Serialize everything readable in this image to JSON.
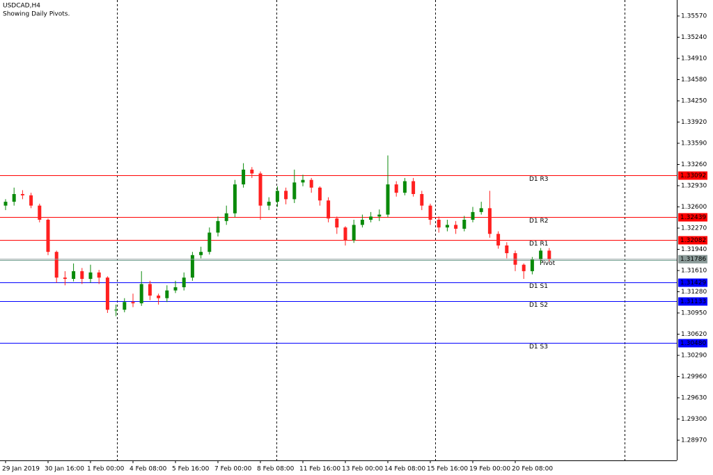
{
  "chart_data": {
    "type": "candlestick",
    "title": "USDCAD,H4",
    "subtitle": "Showing Daily Pivots.",
    "up_color": "#0a8a0a",
    "down_color": "#ff2020",
    "ylim": [
      1.28656,
      1.35819
    ],
    "yticks": [
      {
        "value": 1.3557,
        "label": "1.35570"
      },
      {
        "value": 1.3524,
        "label": "1.35240"
      },
      {
        "value": 1.3491,
        "label": "1.34910"
      },
      {
        "value": 1.3458,
        "label": "1.34580"
      },
      {
        "value": 1.3425,
        "label": "1.34250"
      },
      {
        "value": 1.3392,
        "label": "1.33920"
      },
      {
        "value": 1.3359,
        "label": "1.33590"
      },
      {
        "value": 1.3326,
        "label": "1.33260"
      },
      {
        "value": 1.3293,
        "label": "1.32930"
      },
      {
        "value": 1.326,
        "label": "1.32600"
      },
      {
        "value": 1.3227,
        "label": "1.32270"
      },
      {
        "value": 1.3194,
        "label": "1.31940"
      },
      {
        "value": 1.3161,
        "label": "1.31610"
      },
      {
        "value": 1.3128,
        "label": "1.31280"
      },
      {
        "value": 1.3095,
        "label": "1.30950"
      },
      {
        "value": 1.3062,
        "label": "1.30620"
      },
      {
        "value": 1.3029,
        "label": "1.30290"
      },
      {
        "value": 1.2996,
        "label": "1.29960"
      },
      {
        "value": 1.2963,
        "label": "1.29630"
      },
      {
        "value": 1.293,
        "label": "1.29300"
      },
      {
        "value": 1.2897,
        "label": "1.28970"
      }
    ],
    "categories": [
      "29 Jan 2019",
      null,
      null,
      null,
      null,
      "30 Jan 16:00",
      null,
      null,
      null,
      null,
      "1 Feb 00:00",
      null,
      null,
      null,
      null,
      "4 Feb 08:00",
      null,
      null,
      null,
      null,
      "5 Feb 16:00",
      null,
      null,
      null,
      null,
      "7 Feb 00:00",
      null,
      null,
      null,
      null,
      "8 Feb 08:00",
      null,
      null,
      null,
      null,
      "11 Feb 16:00",
      null,
      null,
      null,
      null,
      "13 Feb 00:00",
      null,
      null,
      null,
      null,
      "14 Feb 08:00",
      null,
      null,
      null,
      null,
      "15 Feb 16:00",
      null,
      null,
      null,
      null,
      "19 Feb 00:00",
      null,
      null,
      null,
      null,
      "20 Feb 08:00",
      null,
      null,
      null,
      null
    ],
    "open": [
      1.3262,
      1.3268,
      1.328,
      1.3278,
      1.3262,
      1.324,
      1.319,
      1.315,
      1.3148,
      1.316,
      1.3148,
      1.3158,
      1.315,
      1.31,
      1.31,
      1.3112,
      1.311,
      1.314,
      1.3122,
      1.3118,
      1.313,
      1.3135,
      1.315,
      1.3185,
      1.319,
      1.322,
      1.3238,
      1.325,
      1.3295,
      1.3318,
      1.3312,
      1.3262,
      1.3268,
      1.3285,
      1.3272,
      1.3298,
      1.3302,
      1.329,
      1.327,
      1.3242,
      1.3228,
      1.3208,
      1.3232,
      1.324,
      1.3245,
      1.3248,
      1.3295,
      1.3282,
      1.33,
      1.328,
      1.3262,
      1.324,
      1.3228,
      1.3232,
      1.3226,
      1.324,
      1.3252,
      1.3258,
      1.3218,
      1.32,
      1.3188,
      1.317,
      1.316,
      1.3178,
      1.3192
    ],
    "high": [
      1.3272,
      1.329,
      1.3286,
      1.3282,
      1.3265,
      1.3242,
      1.3192,
      1.316,
      1.3172,
      1.3165,
      1.317,
      1.3162,
      1.3152,
      1.3108,
      1.3118,
      1.3125,
      1.316,
      1.3145,
      1.3125,
      1.3138,
      1.3145,
      1.3158,
      1.319,
      1.3198,
      1.3228,
      1.3245,
      1.3262,
      1.3302,
      1.3328,
      1.3322,
      1.3315,
      1.3275,
      1.3292,
      1.329,
      1.3318,
      1.331,
      1.3305,
      1.3292,
      1.3275,
      1.3245,
      1.323,
      1.324,
      1.3248,
      1.3252,
      1.3256,
      1.334,
      1.33,
      1.3305,
      1.3305,
      1.3285,
      1.3265,
      1.3245,
      1.324,
      1.3238,
      1.3246,
      1.326,
      1.3268,
      1.3285,
      1.3222,
      1.3205,
      1.3192,
      1.3172,
      1.3182,
      1.3196,
      1.3196
    ],
    "low": [
      1.3255,
      1.3262,
      1.3272,
      1.3258,
      1.3236,
      1.3185,
      1.3142,
      1.3138,
      1.3144,
      1.314,
      1.3142,
      1.314,
      1.3095,
      1.309,
      1.3096,
      1.3104,
      1.3106,
      1.3115,
      1.3108,
      1.3112,
      1.3126,
      1.313,
      1.3145,
      1.318,
      1.3186,
      1.3214,
      1.3232,
      1.3244,
      1.329,
      1.3305,
      1.324,
      1.3255,
      1.326,
      1.3264,
      1.3266,
      1.3292,
      1.3282,
      1.3262,
      1.3236,
      1.3218,
      1.32,
      1.3204,
      1.3228,
      1.3236,
      1.3238,
      1.3244,
      1.3276,
      1.3278,
      1.3276,
      1.3255,
      1.3232,
      1.322,
      1.3222,
      1.3218,
      1.3222,
      1.3236,
      1.3248,
      1.3212,
      1.3195,
      1.318,
      1.316,
      1.3148,
      1.3155,
      1.3172,
      1.3175
    ],
    "close": [
      1.3268,
      1.328,
      1.3278,
      1.3262,
      1.324,
      1.319,
      1.315,
      1.3148,
      1.316,
      1.3148,
      1.3158,
      1.315,
      1.31,
      1.31,
      1.3112,
      1.311,
      1.314,
      1.3122,
      1.3118,
      1.313,
      1.3135,
      1.315,
      1.3185,
      1.319,
      1.322,
      1.3238,
      1.325,
      1.3295,
      1.3318,
      1.3312,
      1.3262,
      1.3268,
      1.3285,
      1.3272,
      1.3298,
      1.3302,
      1.329,
      1.327,
      1.3242,
      1.3228,
      1.3208,
      1.3232,
      1.324,
      1.3245,
      1.3248,
      1.3295,
      1.3282,
      1.33,
      1.328,
      1.3262,
      1.324,
      1.3228,
      1.3232,
      1.3226,
      1.324,
      1.3252,
      1.3258,
      1.3218,
      1.32,
      1.3188,
      1.317,
      1.316,
      1.3178,
      1.3192,
      1.3179
    ],
    "levels": [
      {
        "name": "D1 R3",
        "value": 1.33092,
        "color": "#ff0000"
      },
      {
        "name": "D1 R2",
        "value": 1.32439,
        "color": "#ff0000"
      },
      {
        "name": "D1 R1",
        "value": 1.32082,
        "color": "#ff0000"
      },
      {
        "name": "Pivot",
        "value": 1.3177,
        "color": "#7fa89a"
      },
      {
        "name": "D1 S1",
        "value": 1.31429,
        "color": "#0000ff"
      },
      {
        "name": "D1 S2",
        "value": 1.31133,
        "color": "#0000ff"
      },
      {
        "name": "D1 S3",
        "value": {
          "value": 1.3048,
          "label": "1.30480"
        },
        "color": "#0000ff"
      }
    ],
    "bid": 1.31786,
    "bid_color": "#8a9a98"
  }
}
